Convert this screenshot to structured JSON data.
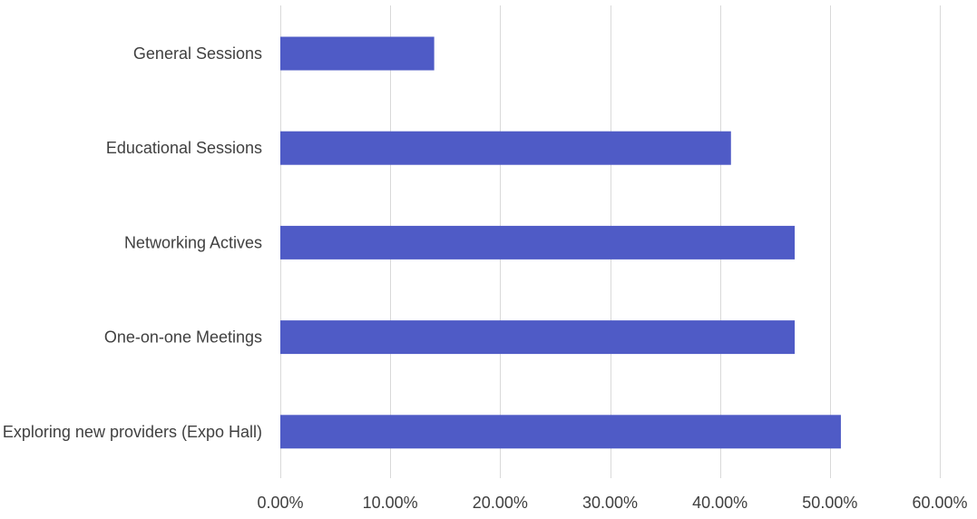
{
  "chart_data": {
    "type": "bar",
    "orientation": "horizontal",
    "categories": [
      "General Sessions",
      "Educational Sessions",
      "Networking Actives",
      "One-on-one Meetings",
      "Exploring new providers (Expo Hall)"
    ],
    "values": [
      0.14,
      0.41,
      0.468,
      0.468,
      0.51
    ],
    "xlim": [
      0,
      0.6
    ],
    "x_ticks": [
      "0.00%",
      "10.00%",
      "20.00%",
      "30.00%",
      "40.00%",
      "50.00%",
      "60.00%"
    ],
    "title": "",
    "xlabel": "",
    "ylabel": "",
    "grid": "vertical",
    "legend": "none",
    "bar_color": "#4F5BC6",
    "grid_color": "#D9D9D9",
    "text_color": "#404040"
  }
}
